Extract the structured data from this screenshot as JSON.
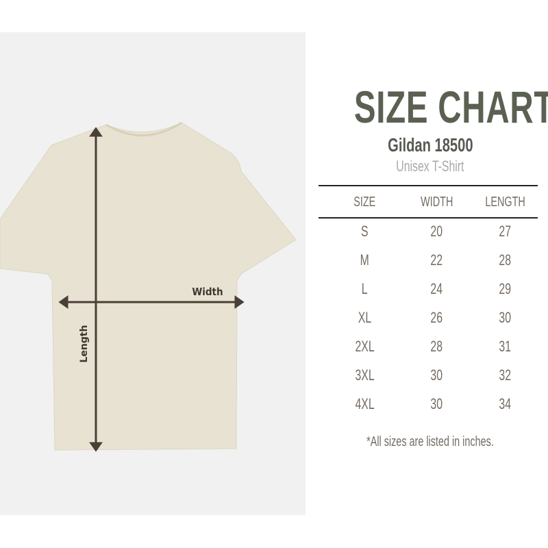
{
  "title": "SIZE CHART",
  "brand": "Gildan 18500",
  "product": "Unisex T-Shirt",
  "colors": {
    "title": "#5a6152",
    "text": "#756b63",
    "shirt": "#e8e2d2",
    "arrow": "#4a3f36"
  },
  "diagram": {
    "width_label": "Width",
    "length_label": "Length"
  },
  "table": {
    "headers": [
      "SIZE",
      "WIDTH",
      "LENGTH"
    ],
    "rows": [
      [
        "S",
        "20",
        "27"
      ],
      [
        "M",
        "22",
        "28"
      ],
      [
        "L",
        "24",
        "29"
      ],
      [
        "XL",
        "26",
        "30"
      ],
      [
        "2XL",
        "28",
        "31"
      ],
      [
        "3XL",
        "30",
        "32"
      ],
      [
        "4XL",
        "30",
        "34"
      ]
    ]
  },
  "note": "*All sizes are listed in inches."
}
